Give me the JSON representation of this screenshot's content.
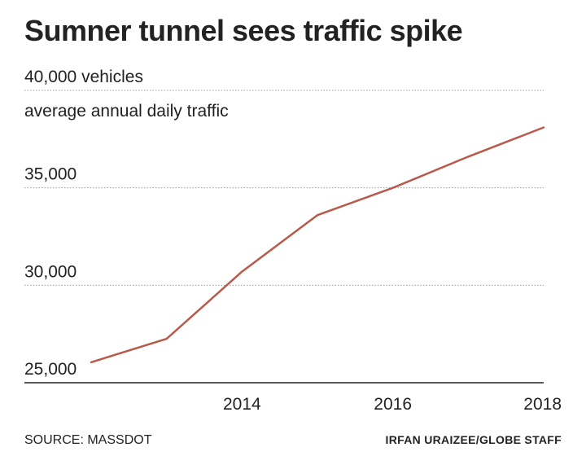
{
  "chart_data": {
    "type": "line",
    "title": "Sumner tunnel sees traffic spike",
    "subtitle": "average annual daily traffic",
    "ylabel": "",
    "xlabel": "",
    "y_unit_label": "vehicles",
    "ylim": [
      25000,
      40000
    ],
    "yticks": [
      25000,
      30000,
      35000,
      40000
    ],
    "ytick_labels": [
      "25,000",
      "30,000",
      "35,000",
      "40,000"
    ],
    "xlim": [
      2012,
      2018
    ],
    "xticks": [
      2014,
      2016,
      2018
    ],
    "xtick_labels": [
      "2014",
      "2016",
      "2018"
    ],
    "grid": "horizontal dotted",
    "series": [
      {
        "color": "#b85a4a",
        "x": [
          2012,
          2013,
          2014,
          2015,
          2016,
          2017,
          2018
        ],
        "y": [
          26050,
          27250,
          30700,
          33600,
          35000,
          36600,
          38100
        ]
      }
    ],
    "source": "SOURCE: MASSDOT",
    "credit": "IRFAN URAIZEE/GLOBE STAFF"
  }
}
